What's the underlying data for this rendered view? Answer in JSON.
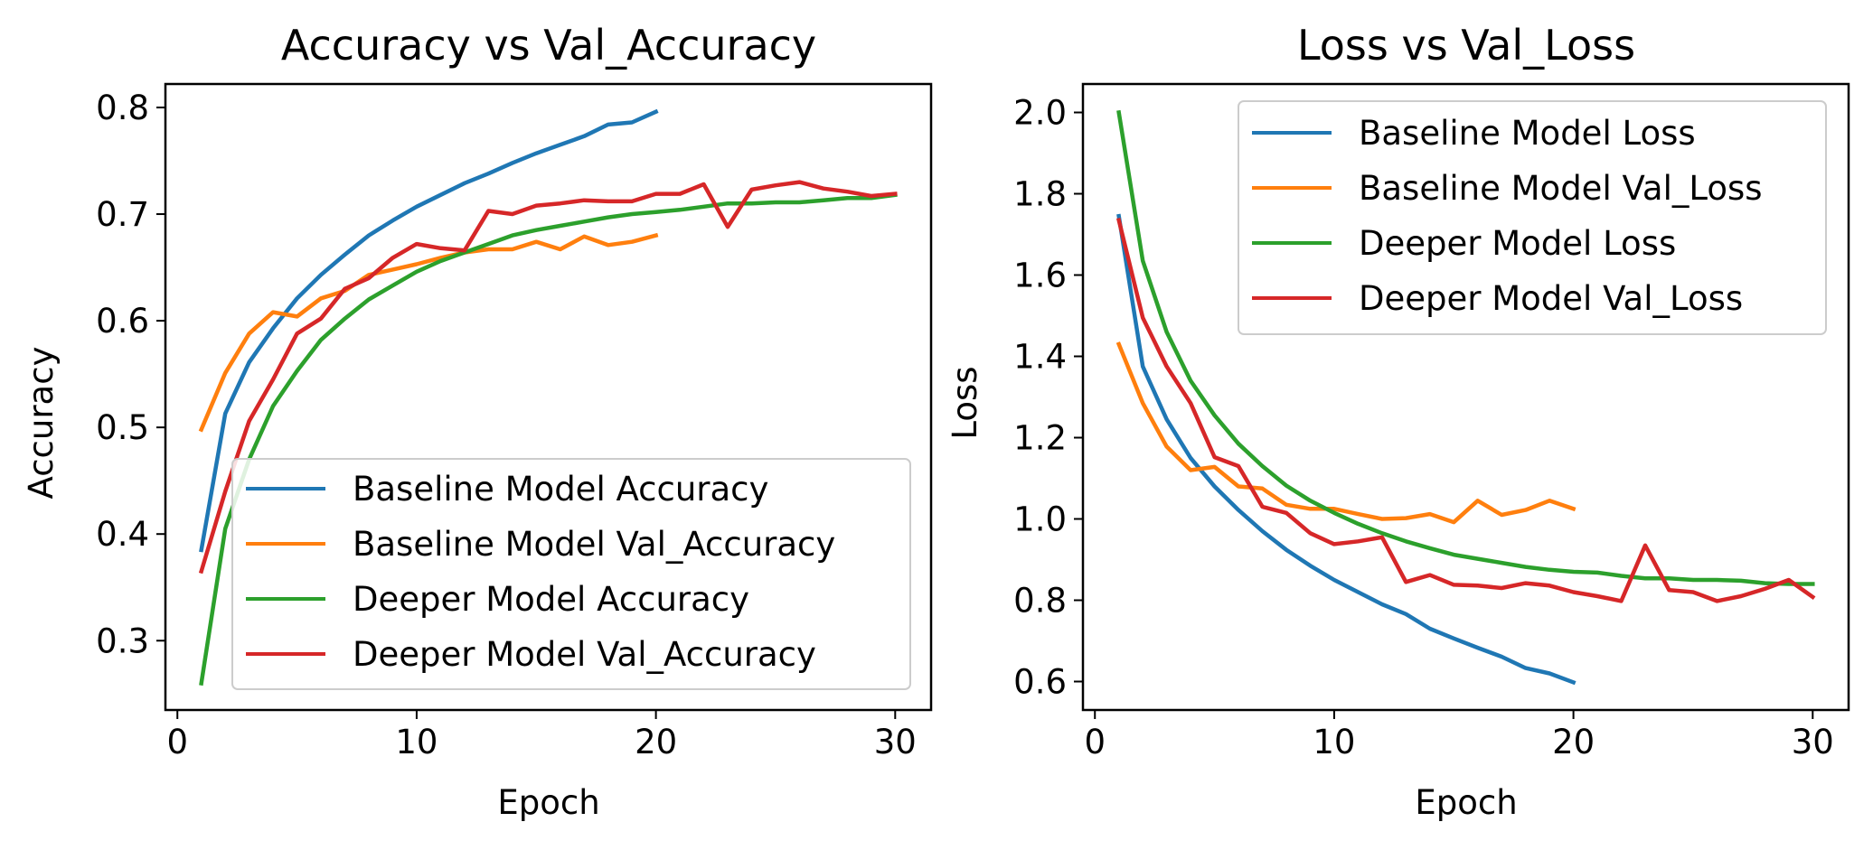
{
  "chart_data": [
    {
      "type": "line",
      "title": "Accuracy vs Val_Accuracy",
      "xlabel": "Epoch",
      "ylabel": "Accuracy",
      "xlim": [
        -0.5,
        31.5
      ],
      "ylim": [
        0.235,
        0.822
      ],
      "xticks": [
        0,
        10,
        20,
        30
      ],
      "yticks": [
        0.3,
        0.4,
        0.5,
        0.6,
        0.7,
        0.8
      ],
      "ytick_labels": [
        "0.3",
        "0.4",
        "0.5",
        "0.6",
        "0.7",
        "0.8"
      ],
      "grid": false,
      "legend_position": "lower-right",
      "series": [
        {
          "name": "Baseline Model Accuracy",
          "color": "#1f77b4",
          "x": [
            1,
            2,
            3,
            4,
            5,
            6,
            7,
            8,
            9,
            10,
            11,
            12,
            13,
            14,
            15,
            16,
            17,
            18,
            19,
            20
          ],
          "y": [
            0.385,
            0.513,
            0.561,
            0.593,
            0.621,
            0.643,
            0.662,
            0.68,
            0.694,
            0.707,
            0.718,
            0.729,
            0.738,
            0.748,
            0.757,
            0.765,
            0.773,
            0.784,
            0.786,
            0.796
          ]
        },
        {
          "name": "Baseline Model Val_Accuracy",
          "color": "#ff7f0e",
          "x": [
            1,
            2,
            3,
            4,
            5,
            6,
            7,
            8,
            9,
            10,
            11,
            12,
            13,
            14,
            15,
            16,
            17,
            18,
            19,
            20
          ],
          "y": [
            0.498,
            0.551,
            0.588,
            0.608,
            0.604,
            0.621,
            0.628,
            0.643,
            0.648,
            0.653,
            0.659,
            0.664,
            0.667,
            0.667,
            0.674,
            0.667,
            0.679,
            0.671,
            0.674,
            0.68
          ]
        },
        {
          "name": "Deeper Model Accuracy",
          "color": "#2ca02c",
          "x": [
            1,
            2,
            3,
            4,
            5,
            6,
            7,
            8,
            9,
            10,
            11,
            12,
            13,
            14,
            15,
            16,
            17,
            18,
            19,
            20,
            21,
            22,
            23,
            24,
            25,
            26,
            27,
            28,
            29,
            30
          ],
          "y": [
            0.26,
            0.405,
            0.47,
            0.52,
            0.553,
            0.582,
            0.602,
            0.62,
            0.633,
            0.646,
            0.656,
            0.664,
            0.672,
            0.68,
            0.685,
            0.689,
            0.693,
            0.697,
            0.7,
            0.702,
            0.704,
            0.707,
            0.71,
            0.71,
            0.711,
            0.711,
            0.713,
            0.715,
            0.715,
            0.718
          ]
        },
        {
          "name": "Deeper Model Val_Accuracy",
          "color": "#d62728",
          "x": [
            1,
            2,
            3,
            4,
            5,
            6,
            7,
            8,
            9,
            10,
            11,
            12,
            13,
            14,
            15,
            16,
            17,
            18,
            19,
            20,
            21,
            22,
            23,
            24,
            25,
            26,
            27,
            28,
            29,
            30
          ],
          "y": [
            0.365,
            0.44,
            0.506,
            0.545,
            0.588,
            0.602,
            0.63,
            0.64,
            0.659,
            0.672,
            0.668,
            0.666,
            0.703,
            0.7,
            0.708,
            0.71,
            0.713,
            0.712,
            0.712,
            0.719,
            0.719,
            0.728,
            0.688,
            0.723,
            0.727,
            0.73,
            0.724,
            0.721,
            0.717,
            0.719
          ]
        }
      ]
    },
    {
      "type": "line",
      "title": "Loss vs Val_Loss",
      "xlabel": "Epoch",
      "ylabel": "Loss",
      "xlim": [
        -0.5,
        31.5
      ],
      "ylim": [
        0.53,
        2.07
      ],
      "xticks": [
        0,
        10,
        20,
        30
      ],
      "yticks": [
        0.6,
        0.8,
        1.0,
        1.2,
        1.4,
        1.6,
        1.8,
        2.0
      ],
      "ytick_labels": [
        "0.6",
        "0.8",
        "1.0",
        "1.2",
        "1.4",
        "1.6",
        "1.8",
        "2.0"
      ],
      "grid": false,
      "legend_position": "upper-right",
      "series": [
        {
          "name": "Baseline Model Loss",
          "color": "#1f77b4",
          "x": [
            1,
            2,
            3,
            4,
            5,
            6,
            7,
            8,
            9,
            10,
            11,
            12,
            13,
            14,
            15,
            16,
            17,
            18,
            19,
            20
          ],
          "y": [
            1.745,
            1.375,
            1.245,
            1.15,
            1.08,
            1.022,
            0.97,
            0.924,
            0.885,
            0.85,
            0.82,
            0.79,
            0.766,
            0.73,
            0.706,
            0.683,
            0.661,
            0.633,
            0.62,
            0.598
          ]
        },
        {
          "name": "Baseline Model Val_Loss",
          "color": "#ff7f0e",
          "x": [
            1,
            2,
            3,
            4,
            5,
            6,
            7,
            8,
            9,
            10,
            11,
            12,
            13,
            14,
            15,
            16,
            17,
            18,
            19,
            20
          ],
          "y": [
            1.43,
            1.285,
            1.178,
            1.12,
            1.128,
            1.08,
            1.075,
            1.035,
            1.025,
            1.025,
            1.012,
            1.0,
            1.002,
            1.012,
            0.992,
            1.045,
            1.01,
            1.022,
            1.045,
            1.025
          ]
        },
        {
          "name": "Deeper Model Loss",
          "color": "#2ca02c",
          "x": [
            1,
            2,
            3,
            4,
            5,
            6,
            7,
            8,
            9,
            10,
            11,
            12,
            13,
            14,
            15,
            16,
            17,
            18,
            19,
            20,
            21,
            22,
            23,
            24,
            25,
            26,
            27,
            28,
            29,
            30
          ],
          "y": [
            2.0,
            1.635,
            1.46,
            1.34,
            1.255,
            1.185,
            1.13,
            1.082,
            1.045,
            1.015,
            0.988,
            0.965,
            0.945,
            0.928,
            0.912,
            0.902,
            0.892,
            0.882,
            0.875,
            0.87,
            0.868,
            0.86,
            0.854,
            0.854,
            0.85,
            0.85,
            0.848,
            0.842,
            0.84,
            0.84
          ]
        },
        {
          "name": "Deeper Model Val_Loss",
          "color": "#d62728",
          "x": [
            1,
            2,
            3,
            4,
            5,
            6,
            7,
            8,
            9,
            10,
            11,
            12,
            13,
            14,
            15,
            16,
            17,
            18,
            19,
            20,
            21,
            22,
            23,
            24,
            25,
            26,
            27,
            28,
            29,
            30
          ],
          "y": [
            1.735,
            1.495,
            1.375,
            1.285,
            1.152,
            1.13,
            1.03,
            1.015,
            0.965,
            0.938,
            0.945,
            0.955,
            0.845,
            0.862,
            0.838,
            0.836,
            0.83,
            0.842,
            0.836,
            0.82,
            0.81,
            0.798,
            0.935,
            0.825,
            0.82,
            0.798,
            0.81,
            0.828,
            0.85,
            0.808
          ]
        }
      ]
    }
  ]
}
